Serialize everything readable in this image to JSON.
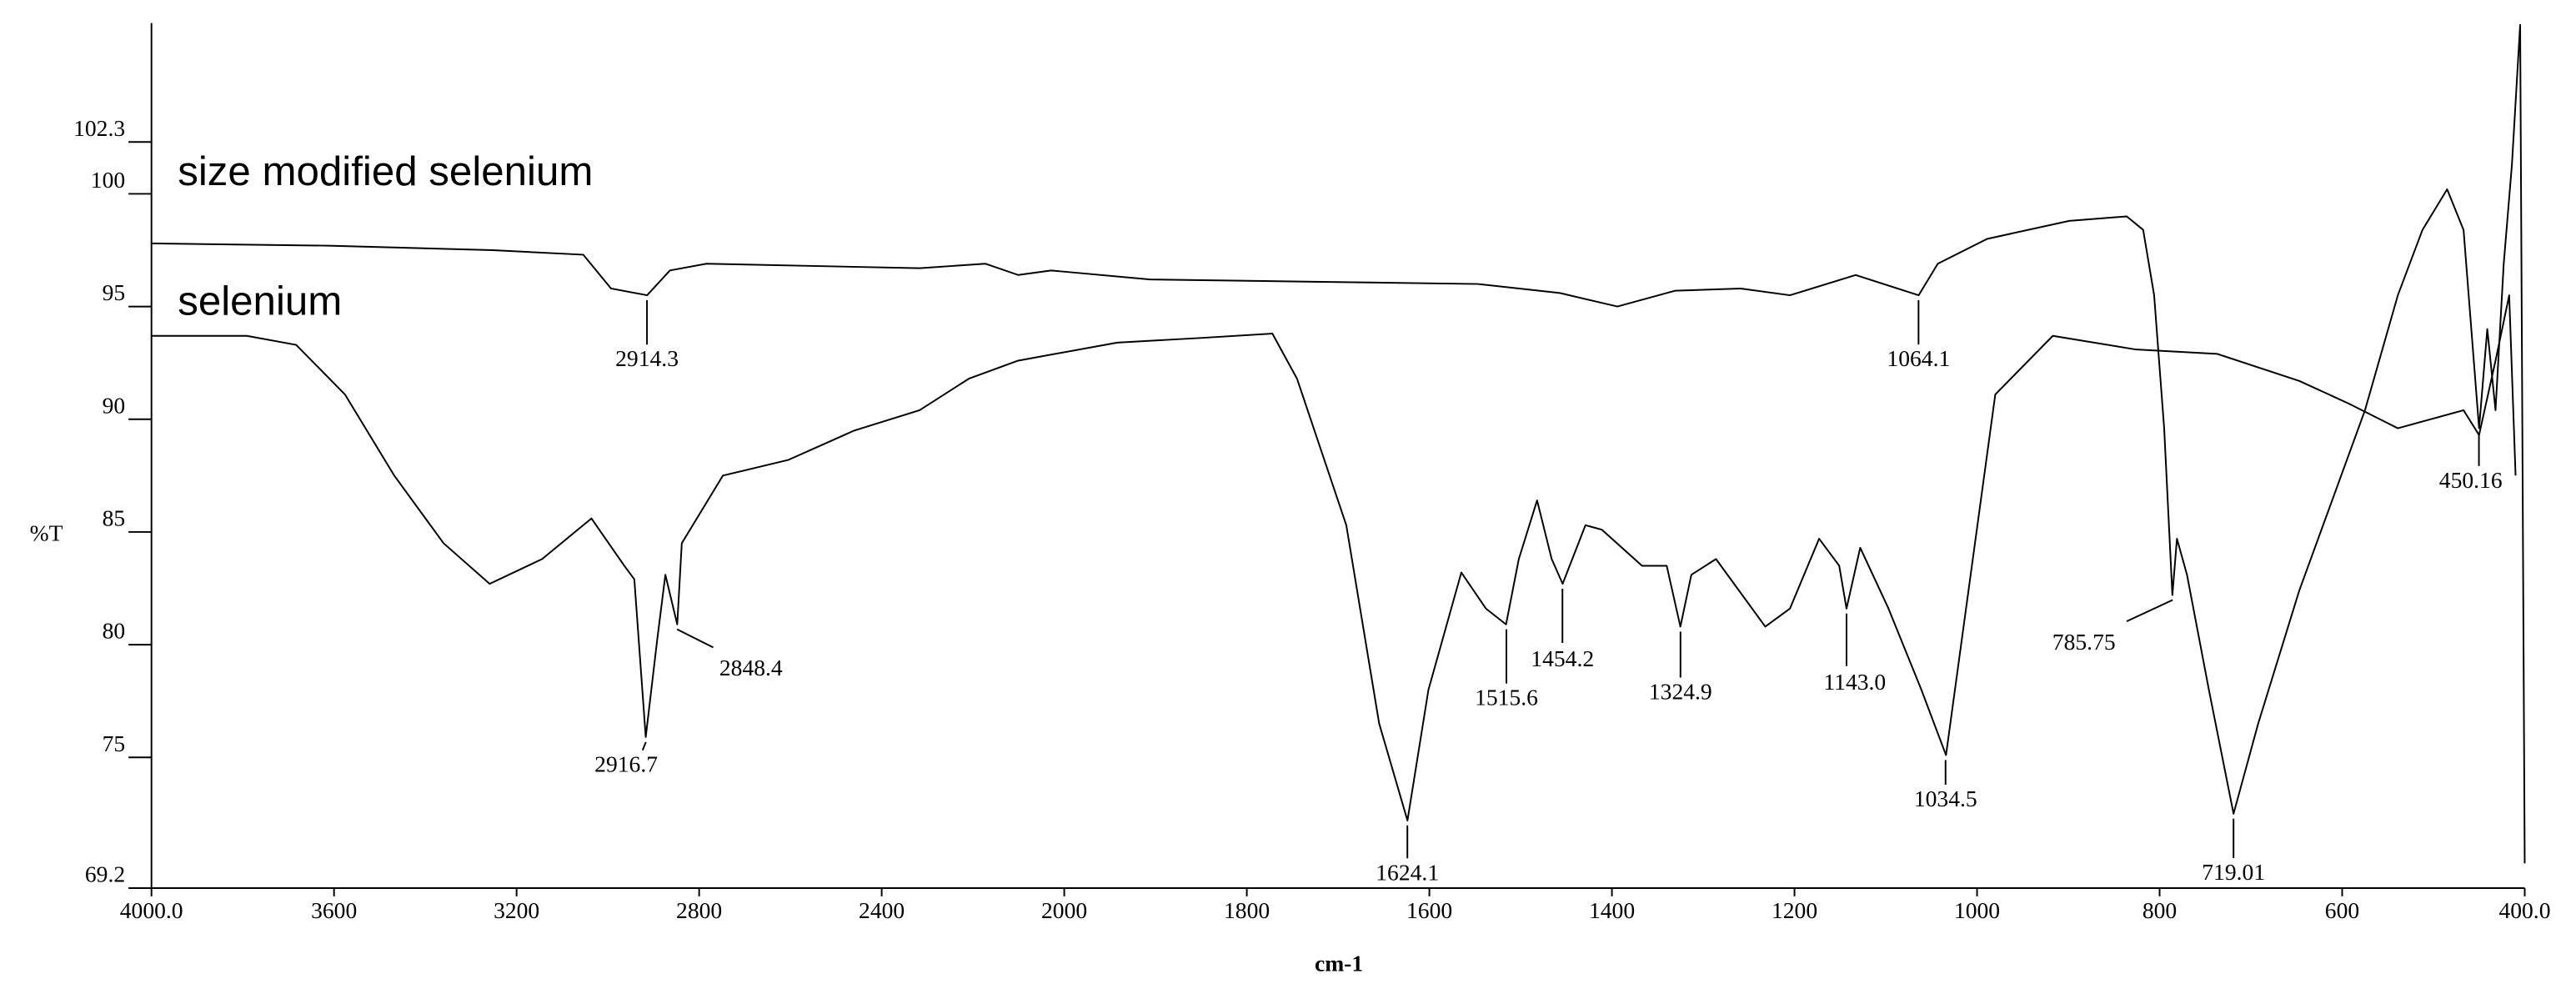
{
  "chart_data": {
    "type": "line",
    "xlabel": "cm-1",
    "ylabel": "%T",
    "xlim": [
      4000,
      400
    ],
    "ylim": [
      69.2,
      107.6
    ],
    "x_scale_break": 2000,
    "xticks": [
      {
        "value": 4000,
        "label": "4000.0"
      },
      3600,
      3200,
      2800,
      2400,
      2000,
      1800,
      1600,
      1400,
      1200,
      1000,
      800,
      600,
      {
        "value": 400,
        "label": "400.0"
      }
    ],
    "yticks": [
      102.3,
      100,
      95,
      90,
      85,
      80,
      75,
      69.2
    ],
    "grid": false,
    "series": [
      {
        "name": "size modified selenium",
        "color": "#000000",
        "x": [
          4000,
          3612,
          3252,
          3054,
          2993,
          2914,
          2864,
          2784,
          2317,
          2245,
          2173,
          2101,
          2029,
          1906,
          1727,
          1547,
          1457,
          1394,
          1331,
          1259,
          1205,
          1133,
          1064,
          1043,
          989,
          899,
          836,
          818,
          806,
          795,
          786,
          781,
          770,
          746,
          719,
          692,
          647,
          575,
          539,
          512,
          485,
          467,
          450,
          441,
          432,
          423,
          414,
          405,
          400
        ],
        "values": [
          97.8,
          97.7,
          97.5,
          97.3,
          95.8,
          95.5,
          96.6,
          96.9,
          96.7,
          96.8,
          96.9,
          96.4,
          96.6,
          96.2,
          96.1,
          96.0,
          95.6,
          95.0,
          95.7,
          95.8,
          95.5,
          96.4,
          95.5,
          96.9,
          98.0,
          98.8,
          99.0,
          98.4,
          95.5,
          89.6,
          82.2,
          84.7,
          83.1,
          78.0,
          72.5,
          76.5,
          82.4,
          90.4,
          95.5,
          98.4,
          100.2,
          98.4,
          89.6,
          94.0,
          90.4,
          96.9,
          101.3,
          107.5,
          70.3
        ]
      },
      {
        "name": "selenium",
        "color": "#000000",
        "x": [
          4000,
          3791,
          3683,
          3576,
          3468,
          3360,
          3259,
          3144,
          3036,
          2964,
          2942,
          2917,
          2892,
          2874,
          2848,
          2838,
          2748,
          2604,
          2460,
          2317,
          2209,
          2101,
          1942,
          1853,
          1772,
          1745,
          1691,
          1655,
          1624,
          1601,
          1565,
          1538,
          1516,
          1502,
          1482,
          1466,
          1454,
          1429,
          1411,
          1367,
          1340,
          1325,
          1313,
          1286,
          1232,
          1205,
          1173,
          1151,
          1143,
          1128,
          1097,
          1061,
          1034,
          1007,
          980,
          917,
          827,
          737,
          647,
          593,
          539,
          467,
          450,
          432,
          417,
          410
        ],
        "values": [
          93.7,
          93.7,
          93.3,
          91.1,
          87.5,
          84.5,
          82.7,
          83.8,
          85.6,
          83.5,
          82.9,
          75.9,
          80.2,
          83.1,
          80.9,
          84.5,
          87.5,
          88.2,
          89.5,
          90.4,
          91.8,
          92.6,
          93.4,
          93.6,
          93.8,
          91.8,
          85.3,
          76.5,
          72.2,
          78.0,
          83.2,
          81.6,
          80.9,
          83.8,
          86.4,
          83.8,
          82.7,
          85.3,
          85.1,
          83.5,
          83.5,
          80.8,
          83.1,
          83.8,
          80.8,
          81.6,
          84.7,
          83.5,
          81.6,
          84.3,
          81.6,
          78.0,
          75.1,
          83.1,
          91.1,
          93.7,
          93.1,
          92.9,
          91.7,
          90.7,
          89.6,
          90.4,
          89.3,
          92.6,
          95.5,
          87.5
        ]
      }
    ],
    "annotations": [
      {
        "label": "2914.3",
        "x": 2914.3,
        "y": 95.5
      },
      {
        "label": "1064.1",
        "x": 1064.1,
        "y": 95.5
      },
      {
        "label": "2916.7",
        "x": 2916.7,
        "y": 75.9
      },
      {
        "label": "2848.4",
        "x": 2848.4,
        "y": 80.9
      },
      {
        "label": "1624.1",
        "x": 1624.1,
        "y": 72.2
      },
      {
        "label": "1515.6",
        "x": 1515.6,
        "y": 80.9
      },
      {
        "label": "1454.2",
        "x": 1454.2,
        "y": 82.7
      },
      {
        "label": "1324.9",
        "x": 1324.9,
        "y": 80.8
      },
      {
        "label": "1143.0",
        "x": 1143.0,
        "y": 81.6
      },
      {
        "label": "1034.5",
        "x": 1034.5,
        "y": 75.1
      },
      {
        "label": "785.75",
        "x": 785.75,
        "y": 82.2
      },
      {
        "label": "719.01",
        "x": 719.01,
        "y": 72.5
      },
      {
        "label": "450.16",
        "x": 450.16,
        "y": 89.6
      }
    ]
  }
}
